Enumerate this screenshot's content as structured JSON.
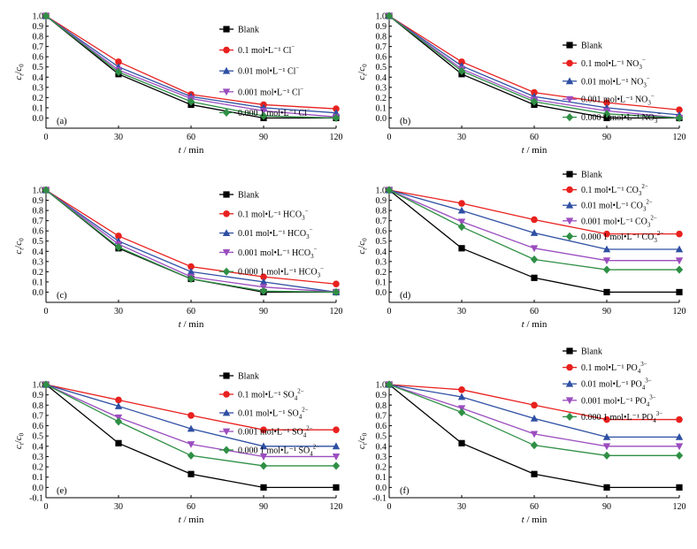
{
  "colors": {
    "blank": "#000000",
    "c1": "#e8211f",
    "c2": "#2e4fa3",
    "c3": "#9b4dbf",
    "c4": "#2f8f45"
  },
  "chart_data": [
    {
      "type": "line",
      "panel_label": "(a)",
      "xlabel_var": "t",
      "xlabel_unit": "min",
      "ylabel": "c_t/c_0",
      "x": [
        0,
        30,
        60,
        90,
        120
      ],
      "xlim": [
        0,
        120
      ],
      "ylim": [
        -0.1,
        1.0
      ],
      "xticks": [
        "0",
        "30",
        "60",
        "90",
        "120"
      ],
      "yticks": [
        "0.0",
        "0.1",
        "0.2",
        "0.3",
        "0.4",
        "0.5",
        "0.6",
        "0.7",
        "0.8",
        "0.9",
        "1.0"
      ],
      "legend_placement": "top-right",
      "series": [
        {
          "pre": "Blank",
          "ion": "",
          "sub": "",
          "sup": "",
          "marker": "square",
          "values": [
            1.0,
            0.43,
            0.13,
            0.0,
            0.0
          ]
        },
        {
          "pre": "0.1 mol•L⁻¹ ",
          "ion": "Cl",
          "sub": "",
          "sup": "−",
          "marker": "circle",
          "values": [
            1.0,
            0.55,
            0.23,
            0.13,
            0.09
          ]
        },
        {
          "pre": "0.01 mol•L⁻¹ ",
          "ion": "Cl",
          "sub": "",
          "sup": "−",
          "marker": "triangle-up",
          "values": [
            1.0,
            0.5,
            0.21,
            0.1,
            0.05
          ]
        },
        {
          "pre": "0.001 mol•L⁻¹ ",
          "ion": "Cl",
          "sub": "",
          "sup": "−",
          "marker": "triangle-down",
          "values": [
            1.0,
            0.47,
            0.19,
            0.07,
            0.01
          ]
        },
        {
          "pre": "0.000 1 mol•L⁻¹ ",
          "ion": "Cl",
          "sub": "",
          "sup": "−",
          "marker": "diamond",
          "values": [
            1.0,
            0.45,
            0.16,
            0.02,
            0.0
          ]
        }
      ]
    },
    {
      "type": "line",
      "panel_label": "(b)",
      "xlabel_var": "t",
      "xlabel_unit": "min",
      "ylabel": "c_t/c_0",
      "x": [
        0,
        30,
        60,
        90,
        120
      ],
      "xlim": [
        0,
        120
      ],
      "ylim": [
        -0.1,
        1.0
      ],
      "xticks": [
        "0",
        "30",
        "60",
        "90",
        "120"
      ],
      "yticks": [
        "0.0",
        "0.1",
        "0.2",
        "0.3",
        "0.4",
        "0.5",
        "0.6",
        "0.7",
        "0.8",
        "0.9",
        "1.0"
      ],
      "legend_placement": "top-right",
      "series": [
        {
          "pre": "Blank",
          "ion": "",
          "sub": "",
          "sup": "",
          "marker": "square",
          "values": [
            1.0,
            0.43,
            0.13,
            0.0,
            0.0
          ]
        },
        {
          "pre": "0.1 mol•L⁻¹ ",
          "ion": "NO",
          "sub": "3",
          "sup": "−",
          "marker": "circle",
          "values": [
            1.0,
            0.55,
            0.25,
            0.15,
            0.08
          ]
        },
        {
          "pre": "0.01 mol•L⁻¹ ",
          "ion": "NO",
          "sub": "3",
          "sup": "−",
          "marker": "triangle-up",
          "values": [
            1.0,
            0.51,
            0.21,
            0.1,
            0.03
          ]
        },
        {
          "pre": "0.001 mol•L⁻¹ ",
          "ion": "NO",
          "sub": "3",
          "sup": "−",
          "marker": "triangle-down",
          "values": [
            1.0,
            0.48,
            0.18,
            0.07,
            0.0
          ]
        },
        {
          "pre": "0.000 1 mol•L⁻¹ ",
          "ion": "NO",
          "sub": "3",
          "sup": "−",
          "marker": "diamond",
          "values": [
            1.0,
            0.46,
            0.16,
            0.04,
            0.0
          ]
        }
      ]
    },
    {
      "type": "line",
      "panel_label": "(c)",
      "xlabel_var": "t",
      "xlabel_unit": "min",
      "ylabel": "c_t/c_0",
      "x": [
        0,
        30,
        60,
        90,
        120
      ],
      "xlim": [
        0,
        120
      ],
      "ylim": [
        -0.1,
        1.0
      ],
      "xticks": [
        "0",
        "30",
        "60",
        "90",
        "120"
      ],
      "yticks": [
        "0.0",
        "0.1",
        "0.2",
        "0.3",
        "0.4",
        "0.5",
        "0.6",
        "0.7",
        "0.8",
        "0.9",
        "1.0"
      ],
      "legend_placement": "top-right",
      "series": [
        {
          "pre": "Blank",
          "ion": "",
          "sub": "",
          "sup": "",
          "marker": "square",
          "values": [
            1.0,
            0.43,
            0.13,
            0.0,
            0.0
          ]
        },
        {
          "pre": "0.1 mol•L⁻¹ ",
          "ion": "HCO",
          "sub": "3",
          "sup": "−",
          "marker": "circle",
          "values": [
            1.0,
            0.55,
            0.25,
            0.15,
            0.08
          ]
        },
        {
          "pre": "0.01 mol•L⁻¹ ",
          "ion": "HCO",
          "sub": "3",
          "sup": "−",
          "marker": "triangle-up",
          "values": [
            1.0,
            0.5,
            0.2,
            0.1,
            0.0
          ]
        },
        {
          "pre": "0.001 mol•L⁻¹ ",
          "ion": "HCO",
          "sub": "3",
          "sup": "−",
          "marker": "triangle-down",
          "values": [
            1.0,
            0.47,
            0.15,
            0.05,
            0.0
          ]
        },
        {
          "pre": "0.000 1 mol•L⁻¹ ",
          "ion": "HCO",
          "sub": "3",
          "sup": "−",
          "marker": "diamond",
          "values": [
            1.0,
            0.44,
            0.13,
            0.01,
            0.0
          ]
        }
      ]
    },
    {
      "type": "line",
      "panel_label": "(d)",
      "xlabel_var": "t",
      "xlabel_unit": "min",
      "ylabel": "c_t/c_0",
      "x": [
        0,
        30,
        60,
        90,
        120
      ],
      "xlim": [
        0,
        120
      ],
      "ylim": [
        -0.1,
        1.0
      ],
      "xticks": [
        "0",
        "30",
        "60",
        "90",
        "120"
      ],
      "yticks": [
        "0.0",
        "0.1",
        "0.2",
        "0.3",
        "0.4",
        "0.5",
        "0.6",
        "0.7",
        "0.8",
        "0.9",
        "1.0"
      ],
      "legend_placement": "top-right",
      "series": [
        {
          "pre": "Blank",
          "ion": "",
          "sub": "",
          "sup": "",
          "marker": "square",
          "values": [
            1.0,
            0.43,
            0.14,
            0.0,
            0.0
          ]
        },
        {
          "pre": "0.1 mol•L⁻¹ ",
          "ion": "CO",
          "sub": "3",
          "sup": "2−",
          "marker": "circle",
          "values": [
            1.0,
            0.87,
            0.71,
            0.57,
            0.57
          ]
        },
        {
          "pre": "0.01 mol•L⁻¹ ",
          "ion": "CO",
          "sub": "3",
          "sup": "2−",
          "marker": "triangle-up",
          "values": [
            1.0,
            0.8,
            0.58,
            0.42,
            0.42
          ]
        },
        {
          "pre": "0.001 mol•L⁻¹ ",
          "ion": "CO",
          "sub": "3",
          "sup": "2−",
          "marker": "triangle-down",
          "values": [
            1.0,
            0.69,
            0.43,
            0.31,
            0.31
          ]
        },
        {
          "pre": "0.000 1 mol•L⁻¹ ",
          "ion": "CO",
          "sub": "3",
          "sup": "2−",
          "marker": "diamond",
          "values": [
            1.0,
            0.64,
            0.32,
            0.22,
            0.22
          ]
        }
      ]
    },
    {
      "type": "line",
      "panel_label": "(e)",
      "xlabel_var": "t",
      "xlabel_unit": "min",
      "ylabel": "c_t/c_0",
      "x": [
        0,
        30,
        60,
        90,
        120
      ],
      "xlim": [
        0,
        120
      ],
      "ylim": [
        -0.1,
        1.0
      ],
      "xticks": [
        "0",
        "30",
        "60",
        "90",
        "120"
      ],
      "yticks": [
        "-0.1",
        "0.0",
        "0.1",
        "0.2",
        "0.3",
        "0.4",
        "0.5",
        "0.6",
        "0.7",
        "0.8",
        "0.9",
        "1.0"
      ],
      "legend_placement": "top-right",
      "series": [
        {
          "pre": "Blank",
          "ion": "",
          "sub": "",
          "sup": "",
          "marker": "square",
          "values": [
            1.0,
            0.43,
            0.13,
            0.0,
            0.0
          ]
        },
        {
          "pre": "0.1 mol•L⁻¹ ",
          "ion": "SO",
          "sub": "4",
          "sup": "2−",
          "marker": "circle",
          "values": [
            1.0,
            0.85,
            0.7,
            0.56,
            0.56
          ]
        },
        {
          "pre": "0.01 mol•L⁻¹ ",
          "ion": "SO",
          "sub": "4",
          "sup": "2−",
          "marker": "triangle-up",
          "values": [
            1.0,
            0.79,
            0.57,
            0.4,
            0.4
          ]
        },
        {
          "pre": "0.001 mol•L⁻¹ ",
          "ion": "SO",
          "sub": "4",
          "sup": "2−",
          "marker": "triangle-down",
          "values": [
            1.0,
            0.68,
            0.42,
            0.3,
            0.3
          ]
        },
        {
          "pre": "0.000 1 mol•L⁻¹ ",
          "ion": "SO",
          "sub": "4",
          "sup": "2−",
          "marker": "diamond",
          "values": [
            1.0,
            0.64,
            0.31,
            0.21,
            0.21
          ]
        }
      ]
    },
    {
      "type": "line",
      "panel_label": "(f)",
      "xlabel_var": "t",
      "xlabel_unit": "min",
      "ylabel": "c_t/c_0",
      "x": [
        0,
        30,
        60,
        90,
        120
      ],
      "xlim": [
        0,
        120
      ],
      "ylim": [
        -0.1,
        1.0
      ],
      "xticks": [
        "0",
        "30",
        "60",
        "90",
        "120"
      ],
      "yticks": [
        "-0.1",
        "0.0",
        "0.1",
        "0.2",
        "0.3",
        "0.4",
        "0.5",
        "0.6",
        "0.7",
        "0.8",
        "0.9",
        "1.0"
      ],
      "legend_placement": "top-right",
      "series": [
        {
          "pre": "Blank",
          "ion": "",
          "sub": "",
          "sup": "",
          "marker": "square",
          "values": [
            1.0,
            0.43,
            0.13,
            0.0,
            0.0
          ]
        },
        {
          "pre": "0.1 mol•L⁻¹ ",
          "ion": "PO",
          "sub": "4",
          "sup": "3−",
          "marker": "circle",
          "values": [
            1.0,
            0.95,
            0.8,
            0.66,
            0.66
          ]
        },
        {
          "pre": "0.01 mol•L⁻¹ ",
          "ion": "PO",
          "sub": "4",
          "sup": "3−",
          "marker": "triangle-up",
          "values": [
            1.0,
            0.88,
            0.67,
            0.49,
            0.49
          ]
        },
        {
          "pre": "0.001 mol•L⁻¹ ",
          "ion": "PO",
          "sub": "4",
          "sup": "3−",
          "marker": "triangle-down",
          "values": [
            1.0,
            0.77,
            0.52,
            0.4,
            0.4
          ]
        },
        {
          "pre": "0.000 1 mol•L⁻¹ ",
          "ion": "PO",
          "sub": "4",
          "sup": "3−",
          "marker": "diamond",
          "values": [
            1.0,
            0.73,
            0.41,
            0.31,
            0.31
          ]
        }
      ]
    }
  ]
}
